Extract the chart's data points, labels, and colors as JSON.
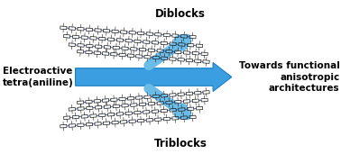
{
  "bg_color": "#ffffff",
  "arrow_h_color": "#3a9ee0",
  "arrow_h_edge": "#1a7fc4",
  "arrow_diag_color": "#a8d8f0",
  "arrow_diag_edge": "#6bbde8",
  "chain_dark": "#1a1a1a",
  "chain_blue": "#2244aa",
  "left_label_line1": "Electroactive",
  "left_label_line2": "tetra(aniline)",
  "top_label": "Diblocks",
  "bottom_label": "Triblocks",
  "right_label_line1": "Towards functional",
  "right_label_line2": "anisotropic",
  "right_label_line3": "architectures",
  "fig_width": 3.78,
  "fig_height": 1.71,
  "dpi": 100,
  "xlim": [
    0,
    10
  ],
  "ylim": [
    0,
    4.5
  ]
}
